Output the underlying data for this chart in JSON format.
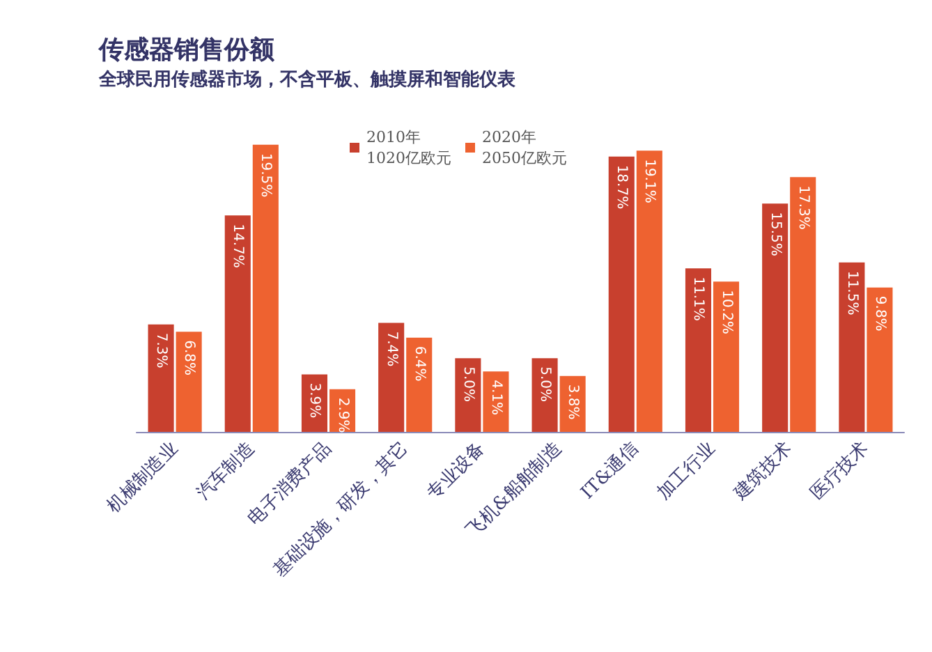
{
  "chart_data": {
    "type": "bar",
    "title": "传感器销售份额",
    "subtitle": "全球民用传感器市场，不含平板、触摸屏和智能仪表",
    "categories": [
      "机械制造业",
      "汽车制造",
      "电子消费产品",
      "基础设施，研发，其它",
      "专业设备",
      "飞机&船舶制造",
      "IT&通信",
      "加工行业",
      "建筑技术",
      "医疗技术"
    ],
    "series": [
      {
        "name": "2010年\n1020亿欧元",
        "color": "#c8402e",
        "values": [
          7.3,
          14.7,
          3.9,
          7.4,
          5.0,
          5.0,
          18.7,
          11.1,
          15.5,
          11.5
        ],
        "value_labels": [
          "7.3%",
          "14.7%",
          "3.9%",
          "7.4%",
          "5.0%",
          "5.0%",
          "18.7%",
          "11.1%",
          "15.5%",
          "11.5%"
        ]
      },
      {
        "name": "2020年\n2050亿欧元",
        "color": "#ee6230",
        "values": [
          6.8,
          19.5,
          2.9,
          6.4,
          4.1,
          3.8,
          19.1,
          10.2,
          17.3,
          9.8
        ],
        "value_labels": [
          "6.8%",
          "19.5%",
          "2.9%",
          "6.4%",
          "4.1%",
          "3.8%",
          "19.1%",
          "10.2%",
          "17.3%",
          "9.8%"
        ]
      }
    ],
    "legend": "top"
  }
}
